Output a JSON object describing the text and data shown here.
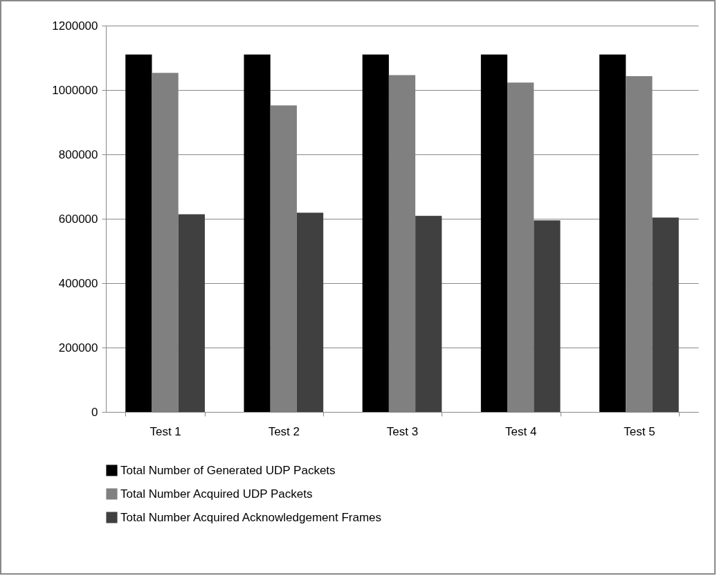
{
  "chart_data": {
    "type": "bar",
    "categories": [
      "Test 1",
      "Test 2",
      "Test 3",
      "Test 4",
      "Test 5"
    ],
    "series": [
      {
        "name": "Total Number of Generated UDP Packets",
        "color": "#000000",
        "values": [
          1110000,
          1110000,
          1110000,
          1110000,
          1110000
        ]
      },
      {
        "name": "Total Number Acquired UDP Packets",
        "color": "#808080",
        "values": [
          1053000,
          952000,
          1046000,
          1023000,
          1043000
        ]
      },
      {
        "name": "Total Number Acquired Acknowledgement Frames",
        "color": "#404040",
        "values": [
          614000,
          619000,
          609000,
          595000,
          604000
        ]
      }
    ],
    "ylim": [
      0,
      1200000
    ],
    "yticks": [
      0,
      200000,
      400000,
      600000,
      800000,
      1000000,
      1200000
    ],
    "grid": "y",
    "legend": "bottom"
  }
}
